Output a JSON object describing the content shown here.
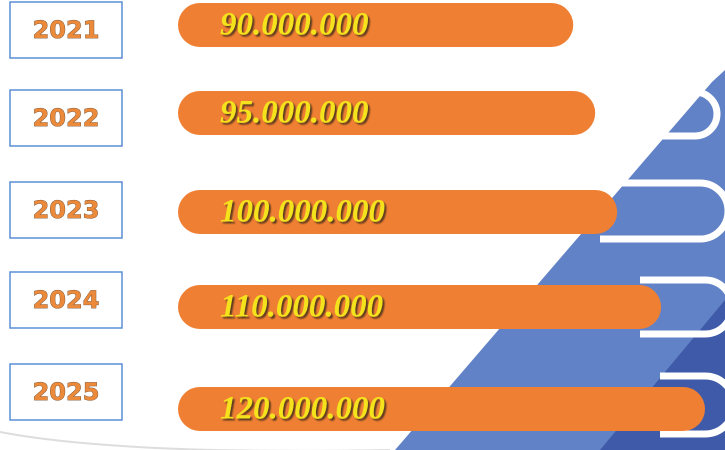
{
  "chart_data": {
    "type": "bar",
    "orientation": "horizontal",
    "categories": [
      "2021",
      "2022",
      "2023",
      "2024",
      "2025"
    ],
    "values": [
      90000000,
      95000000,
      100000000,
      110000000,
      120000000
    ],
    "value_labels": [
      "90.000.000",
      "95.000.000",
      "100.000.000",
      "110.000.000",
      "120.000.000"
    ],
    "color": "#ef7f33"
  }
}
